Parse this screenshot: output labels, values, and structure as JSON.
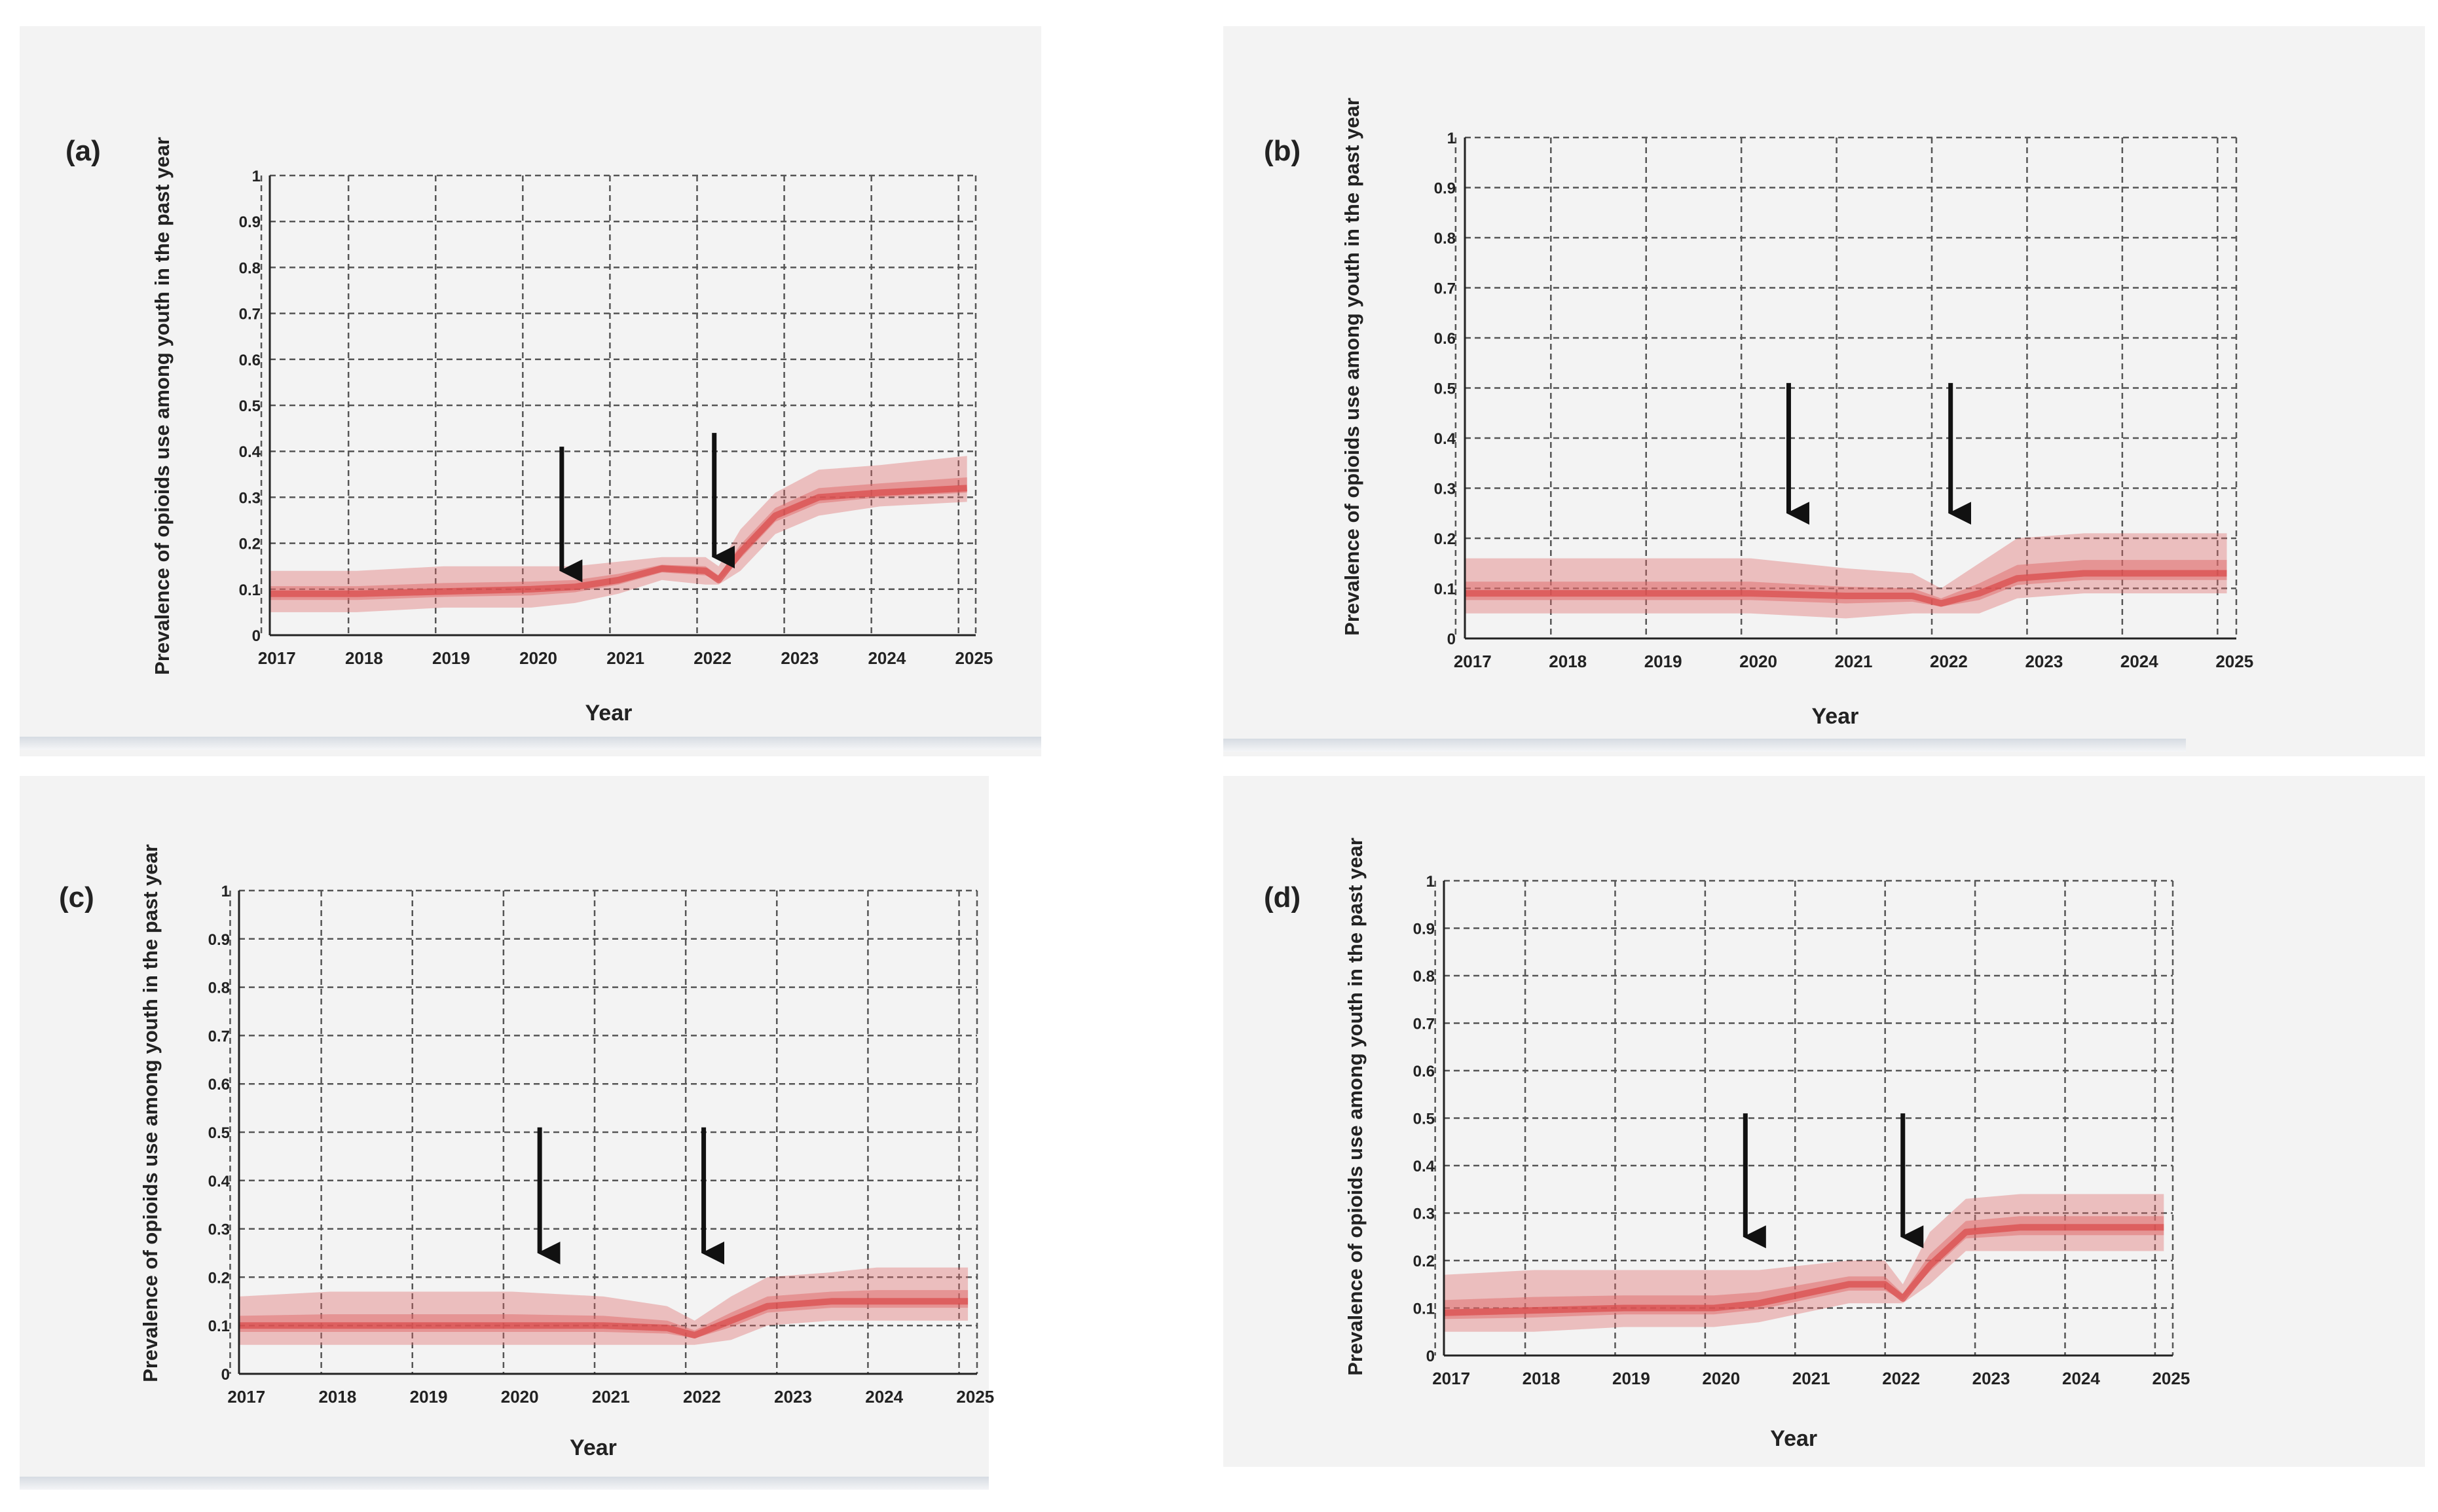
{
  "chart_data": [
    {
      "type": "area",
      "panel_label": "(a)",
      "xlabel": "Year",
      "ylabel": "Prevalence of opioids use among youth in the past year",
      "x_ticks": [
        "2017",
        "2018",
        "2019",
        "2020",
        "2021",
        "2022",
        "2023",
        "2024",
        "2025"
      ],
      "y_ticks": [
        "0",
        "0.1",
        "0.2",
        "0.3",
        "0.4",
        "0.5",
        "0.6",
        "0.7",
        "0.8",
        "0.9",
        "1"
      ],
      "ylim": [
        0,
        1
      ],
      "grid": true,
      "color": "#e06a6a",
      "band": {
        "x": [
          2017,
          2018,
          2019,
          2020,
          2020.5,
          2021,
          2021.5,
          2022,
          2022.15,
          2022.4,
          2022.8,
          2023.3,
          2024,
          2025
        ],
        "lower": [
          0.05,
          0.05,
          0.06,
          0.06,
          0.07,
          0.09,
          0.12,
          0.11,
          0.11,
          0.14,
          0.22,
          0.26,
          0.28,
          0.29
        ],
        "upper": [
          0.14,
          0.14,
          0.15,
          0.15,
          0.15,
          0.16,
          0.17,
          0.17,
          0.15,
          0.23,
          0.31,
          0.36,
          0.37,
          0.39
        ],
        "mean": [
          0.09,
          0.09,
          0.095,
          0.1,
          0.105,
          0.12,
          0.145,
          0.14,
          0.12,
          0.18,
          0.26,
          0.3,
          0.31,
          0.32
        ]
      },
      "arrows": [
        {
          "x": 2020.35,
          "y_tip": 0.14,
          "y_tail": 0.41
        },
        {
          "x": 2022.1,
          "y_tip": 0.17,
          "y_tail": 0.44
        }
      ]
    },
    {
      "type": "area",
      "panel_label": "(b)",
      "xlabel": "Year",
      "ylabel": "Prevalence of opioids use among youth in the past year",
      "x_ticks": [
        "2017",
        "2018",
        "2019",
        "2020",
        "2021",
        "2022",
        "2023",
        "2024",
        "2025"
      ],
      "y_ticks": [
        "0",
        "0.1",
        "0.2",
        "0.3",
        "0.4",
        "0.5",
        "0.6",
        "0.7",
        "0.8",
        "0.9",
        "1"
      ],
      "ylim": [
        0,
        1
      ],
      "grid": true,
      "color": "#e06a6a",
      "band": {
        "x": [
          2017,
          2018,
          2019,
          2020,
          2021,
          2021.7,
          2022,
          2022.4,
          2022.8,
          2023.5,
          2024,
          2025
        ],
        "lower": [
          0.05,
          0.05,
          0.05,
          0.05,
          0.04,
          0.05,
          0.05,
          0.05,
          0.08,
          0.09,
          0.09,
          0.09
        ],
        "upper": [
          0.16,
          0.16,
          0.16,
          0.16,
          0.14,
          0.13,
          0.1,
          0.15,
          0.2,
          0.21,
          0.21,
          0.21
        ],
        "mean": [
          0.09,
          0.09,
          0.09,
          0.09,
          0.085,
          0.085,
          0.07,
          0.09,
          0.12,
          0.13,
          0.13,
          0.13
        ]
      },
      "arrows": [
        {
          "x": 2020.4,
          "y_tip": 0.25,
          "y_tail": 0.51
        },
        {
          "x": 2022.1,
          "y_tip": 0.25,
          "y_tail": 0.51
        }
      ]
    },
    {
      "type": "area",
      "panel_label": "(c)",
      "xlabel": "Year",
      "ylabel": "Prevalence of opioids use among youth in the past year",
      "x_ticks": [
        "2017",
        "2018",
        "2019",
        "2020",
        "2021",
        "2022",
        "2023",
        "2024",
        "2025"
      ],
      "y_ticks": [
        "0",
        "0.1",
        "0.2",
        "0.3",
        "0.4",
        "0.5",
        "0.6",
        "0.7",
        "0.8",
        "0.9",
        "1"
      ],
      "ylim": [
        0,
        1
      ],
      "grid": true,
      "color": "#e06a6a",
      "band": {
        "x": [
          2017,
          2018,
          2019,
          2020,
          2021,
          2021.7,
          2022,
          2022.4,
          2022.8,
          2023.5,
          2024,
          2025
        ],
        "lower": [
          0.06,
          0.06,
          0.06,
          0.06,
          0.06,
          0.06,
          0.06,
          0.07,
          0.1,
          0.11,
          0.11,
          0.11
        ],
        "upper": [
          0.16,
          0.17,
          0.17,
          0.17,
          0.16,
          0.14,
          0.11,
          0.16,
          0.2,
          0.21,
          0.22,
          0.22
        ],
        "mean": [
          0.1,
          0.1,
          0.1,
          0.1,
          0.1,
          0.095,
          0.08,
          0.11,
          0.14,
          0.15,
          0.15,
          0.15
        ]
      },
      "arrows": [
        {
          "x": 2020.3,
          "y_tip": 0.25,
          "y_tail": 0.51
        },
        {
          "x": 2022.1,
          "y_tip": 0.25,
          "y_tail": 0.51
        }
      ]
    },
    {
      "type": "area",
      "panel_label": "(d)",
      "xlabel": "Year",
      "ylabel": "Prevalence of opioids use among youth in the past year",
      "x_ticks": [
        "2017",
        "2018",
        "2019",
        "2020",
        "2021",
        "2022",
        "2023",
        "2024",
        "2025"
      ],
      "y_ticks": [
        "0",
        "0.1",
        "0.2",
        "0.3",
        "0.4",
        "0.5",
        "0.6",
        "0.7",
        "0.8",
        "0.9",
        "1"
      ],
      "ylim": [
        0,
        1
      ],
      "grid": true,
      "color": "#e06a6a",
      "band": {
        "x": [
          2017,
          2018,
          2019,
          2020,
          2020.5,
          2021,
          2021.5,
          2021.9,
          2022.1,
          2022.4,
          2022.8,
          2023.4,
          2024,
          2025
        ],
        "lower": [
          0.05,
          0.05,
          0.06,
          0.06,
          0.07,
          0.09,
          0.11,
          0.11,
          0.11,
          0.15,
          0.22,
          0.22,
          0.22,
          0.22
        ],
        "upper": [
          0.17,
          0.18,
          0.18,
          0.18,
          0.18,
          0.19,
          0.2,
          0.2,
          0.15,
          0.26,
          0.33,
          0.34,
          0.34,
          0.34
        ],
        "mean": [
          0.09,
          0.095,
          0.1,
          0.1,
          0.11,
          0.13,
          0.15,
          0.15,
          0.12,
          0.19,
          0.26,
          0.27,
          0.27,
          0.27
        ]
      },
      "arrows": [
        {
          "x": 2020.35,
          "y_tip": 0.25,
          "y_tail": 0.51
        },
        {
          "x": 2022.1,
          "y_tip": 0.25,
          "y_tail": 0.51
        }
      ]
    }
  ]
}
